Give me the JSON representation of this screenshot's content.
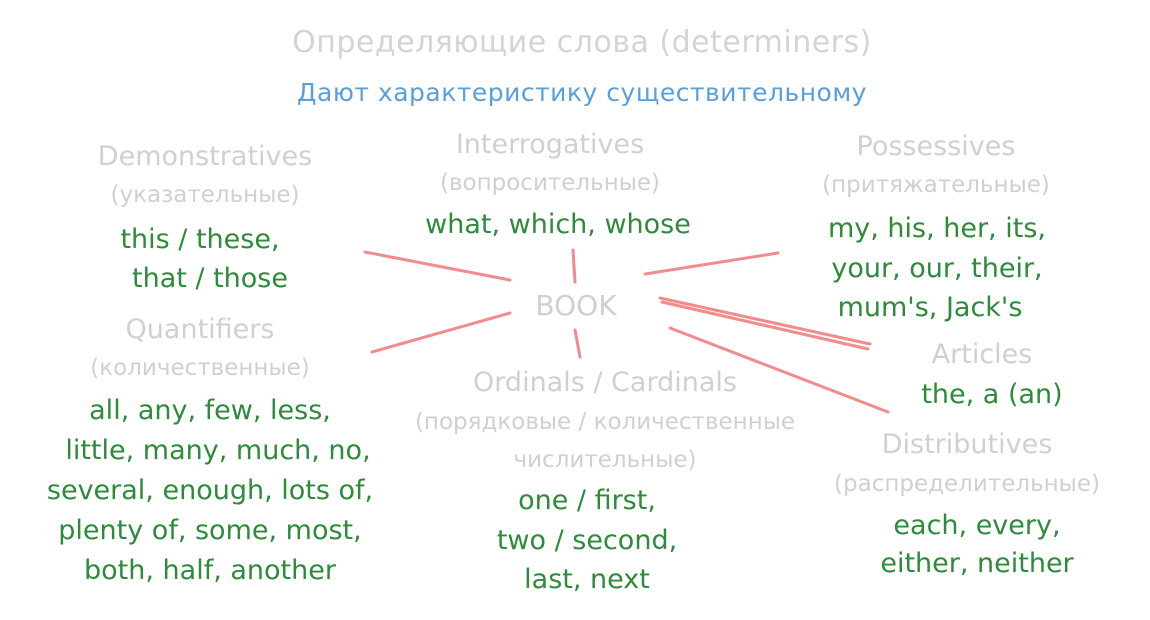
{
  "title": "Определяющие слова (determiners)",
  "subtitle": "Дают характеристику существительному",
  "center_word": "BOOK",
  "colors": {
    "heading": "#d0d0d0",
    "subtitle": "#5a9fdc",
    "examples": "#2e8b3a",
    "connector": "#f28b8b"
  },
  "groups": {
    "demonstratives": {
      "name": "Demonstratives",
      "ru": "(указательные)",
      "examples": [
        "this / these,",
        "that / those"
      ]
    },
    "interrogatives": {
      "name": "Interrogatives",
      "ru": "(вопросительные)",
      "examples": [
        "what, which, whose"
      ]
    },
    "possessives": {
      "name": "Possessives",
      "ru": "(притяжательные)",
      "examples": [
        "my, his, her, its,",
        "your, our, their,",
        "mum's, Jack's"
      ]
    },
    "quantifiers": {
      "name": "Quantifiers",
      "ru": "(количественные)",
      "examples": [
        "all, any, few, less,",
        "little, many, much, no,",
        "several, enough, lots of,",
        "plenty of, some, most,",
        "both, half, another"
      ]
    },
    "ordinals": {
      "name": "Ordinals / Cardinals",
      "ru": [
        "(порядковые / количественные",
        "числительные)"
      ],
      "examples": [
        "one / first,",
        "two / second,",
        "last, next"
      ]
    },
    "articles": {
      "name": "Articles",
      "examples": [
        "the, a (an)"
      ]
    },
    "distributives": {
      "name": "Distributives",
      "ru": "(распределительные)",
      "examples": [
        "each, every,",
        "either, neither"
      ]
    }
  }
}
